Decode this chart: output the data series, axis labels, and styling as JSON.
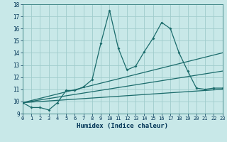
{
  "xlabel": "Humidex (Indice chaleur)",
  "xlim": [
    0,
    23
  ],
  "ylim": [
    9,
    18
  ],
  "yticks": [
    9,
    10,
    11,
    12,
    13,
    14,
    15,
    16,
    17,
    18
  ],
  "xticks": [
    0,
    1,
    2,
    3,
    4,
    5,
    6,
    7,
    8,
    9,
    10,
    11,
    12,
    13,
    14,
    15,
    16,
    17,
    18,
    19,
    20,
    21,
    22,
    23
  ],
  "bg_color": "#c8e8e8",
  "line_color": "#1a6b6b",
  "grid_color": "#a0cccc",
  "main_x": [
    0,
    1,
    2,
    3,
    4,
    5,
    6,
    7,
    8,
    9,
    10,
    11,
    12,
    13,
    14,
    15,
    16,
    17,
    18,
    19,
    20,
    21,
    22,
    23
  ],
  "main_y": [
    9.9,
    9.5,
    9.5,
    9.3,
    9.9,
    10.9,
    10.9,
    11.2,
    11.8,
    14.8,
    17.5,
    14.4,
    12.6,
    12.9,
    14.1,
    15.2,
    16.5,
    16.0,
    14.0,
    12.5,
    11.1,
    11.0,
    11.1,
    11.1
  ],
  "line2_x": [
    0,
    23
  ],
  "line2_y": [
    9.9,
    14.0
  ],
  "line3_x": [
    0,
    23
  ],
  "line3_y": [
    9.9,
    12.5
  ],
  "line4_x": [
    0,
    23
  ],
  "line4_y": [
    9.9,
    11.0
  ]
}
